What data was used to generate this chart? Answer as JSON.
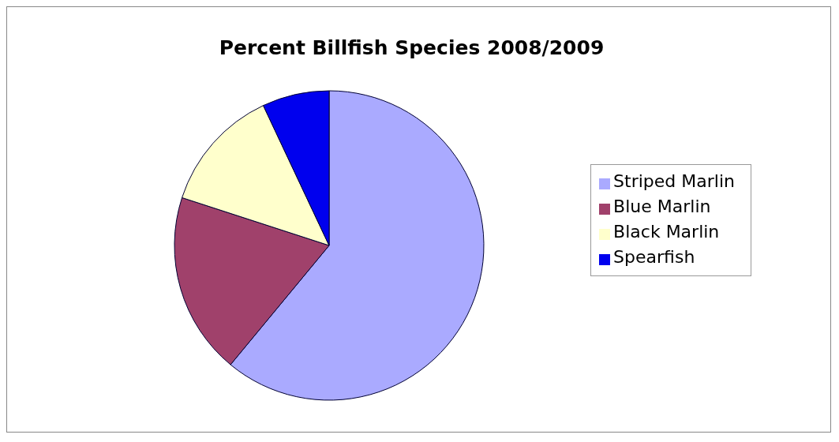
{
  "chart_data": {
    "type": "pie",
    "title": "Percent Billfish Species 2008/2009",
    "categories": [
      "Striped Marlin",
      "Blue Marlin",
      "Black Marlin",
      "Spearfish"
    ],
    "values": [
      61,
      19,
      13,
      7
    ],
    "colors": [
      "#aaaaff",
      "#a0416b",
      "#ffffcc",
      "#0000ee"
    ],
    "legend": "right"
  }
}
